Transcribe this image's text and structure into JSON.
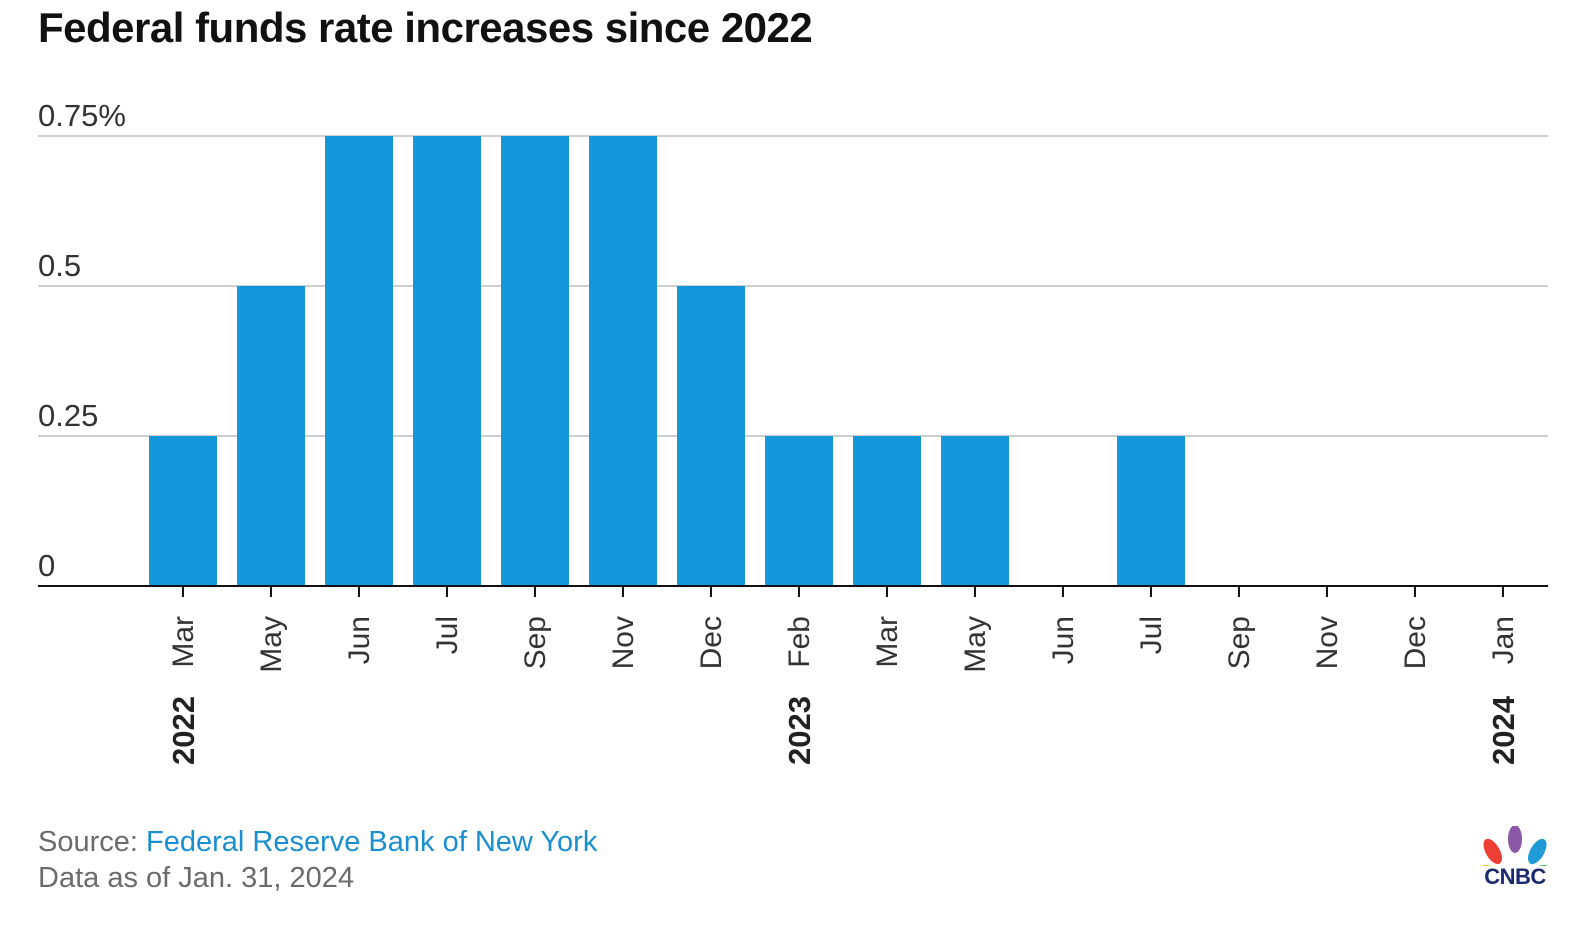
{
  "chart_data": {
    "type": "bar",
    "title": "Federal funds rate increases since 2022",
    "xlabel": "",
    "ylabel": "",
    "ylim": [
      0,
      0.75
    ],
    "ytick_labels": [
      "0",
      "0.25",
      "0.5",
      "0.75%"
    ],
    "ytick_values": [
      0,
      0.25,
      0.5,
      0.75
    ],
    "categories": [
      "Mar",
      "May",
      "Jun",
      "Jul",
      "Sep",
      "Nov",
      "Dec",
      "Feb",
      "Mar",
      "May",
      "Jun",
      "Jul",
      "Sep",
      "Nov",
      "Dec",
      "Jan"
    ],
    "values": [
      0.25,
      0.5,
      0.75,
      0.75,
      0.75,
      0.75,
      0.5,
      0.25,
      0.25,
      0.25,
      0,
      0.25,
      0,
      0,
      0,
      0
    ],
    "year_labels": [
      {
        "label": "2022",
        "category_index": 0
      },
      {
        "label": "2023",
        "category_index": 7
      },
      {
        "label": "2024",
        "category_index": 15
      }
    ],
    "bar_color": "#1497db",
    "grid": true
  },
  "footer": {
    "source_prefix": "Source: ",
    "source_name": "Federal Reserve Bank of New York",
    "data_date": "Data as of Jan. 31, 2024"
  },
  "logo": {
    "text": "CNBC",
    "icon": "cnbc-peacock-icon"
  },
  "colors": {
    "accent": "#1497db",
    "link": "#1a8fd0"
  }
}
